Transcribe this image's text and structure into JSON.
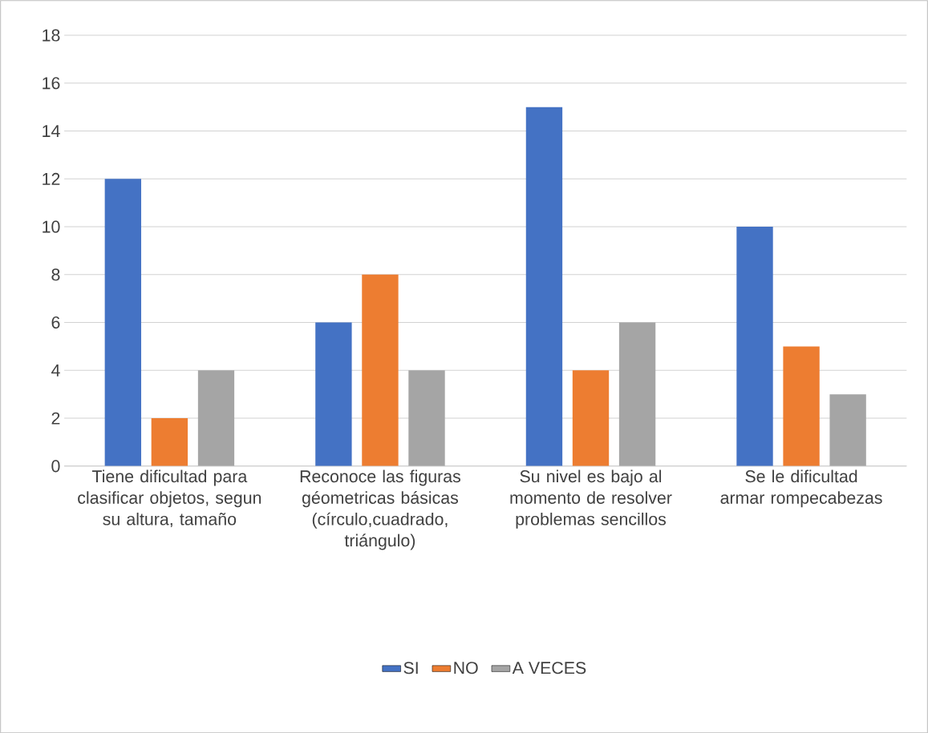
{
  "chart_data": {
    "type": "bar",
    "categories": [
      "Tiene dificultad para clasificar objetos, segun su altura, tamaño",
      "Reconoce las figuras géometricas básicas (círculo,cuadrado, triángulo)",
      "Su nivel es bajo al momento de resolver problemas sencillos",
      "Se le dificultad armar rompecabezas"
    ],
    "series": [
      {
        "name": "SI",
        "color": "#4472c4",
        "values": [
          12,
          6,
          15,
          10
        ]
      },
      {
        "name": "NO",
        "color": "#ed7d31",
        "values": [
          2,
          8,
          4,
          5
        ]
      },
      {
        "name": "A VECES",
        "color": "#a5a5a5",
        "values": [
          4,
          4,
          6,
          3
        ]
      }
    ],
    "ylim": [
      0,
      18
    ],
    "yticks": [
      0,
      2,
      4,
      6,
      8,
      10,
      12,
      14,
      16,
      18
    ],
    "grid": "y",
    "legend": "bottom"
  }
}
